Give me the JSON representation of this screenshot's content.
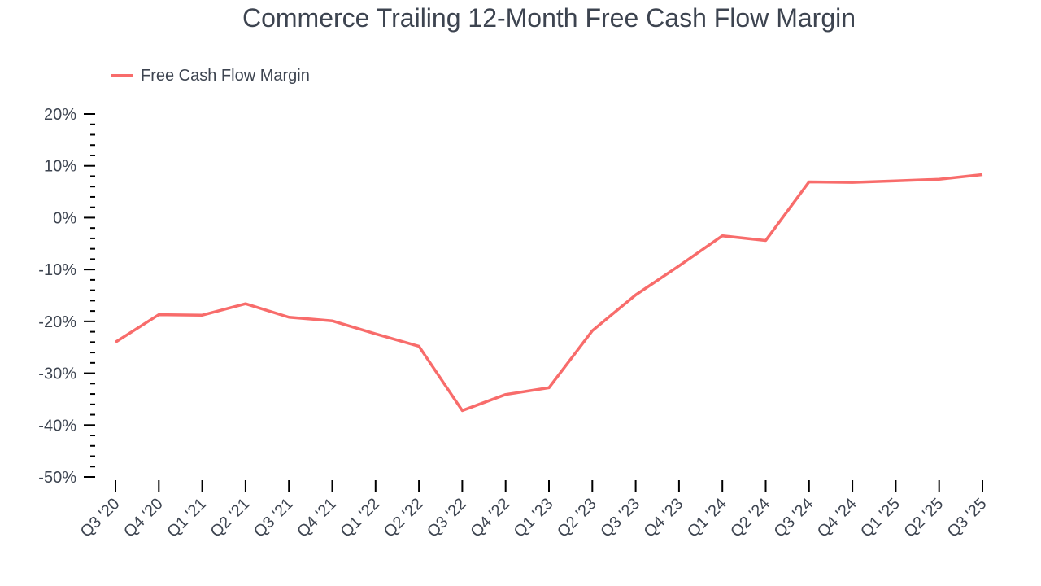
{
  "chart_data": {
    "type": "line",
    "title": "Commerce Trailing 12-Month Free Cash Flow Margin",
    "xlabel": "",
    "ylabel": "",
    "ylim": [
      -50,
      20
    ],
    "yticks": [
      20,
      10,
      0,
      -10,
      -20,
      -30,
      -40,
      -50
    ],
    "ytick_labels": [
      "20%",
      "10%",
      "0%",
      "-10%",
      "-20%",
      "-30%",
      "-40%",
      "-50%"
    ],
    "grid": false,
    "legend_position": "top-left",
    "categories": [
      "Q3 '20",
      "Q4 '20",
      "Q1 '21",
      "Q2 '21",
      "Q3 '21",
      "Q4 '21",
      "Q1 '22",
      "Q2 '22",
      "Q3 '22",
      "Q4 '22",
      "Q1 '23",
      "Q2 '23",
      "Q3 '23",
      "Q4 '23",
      "Q1 '24",
      "Q2 '24",
      "Q3 '24",
      "Q4 '24",
      "Q1 '25",
      "Q2 '25",
      "Q3 '25"
    ],
    "series": [
      {
        "name": "Free Cash Flow Margin",
        "color": "#f86c6b",
        "values": [
          -24.0,
          -18.7,
          -18.8,
          -16.6,
          -19.2,
          -19.9,
          -22.4,
          -24.8,
          -37.2,
          -34.1,
          -32.8,
          -21.8,
          -14.9,
          -9.3,
          -3.5,
          -4.4,
          6.9,
          6.8,
          7.1,
          7.4,
          8.3
        ]
      }
    ]
  }
}
